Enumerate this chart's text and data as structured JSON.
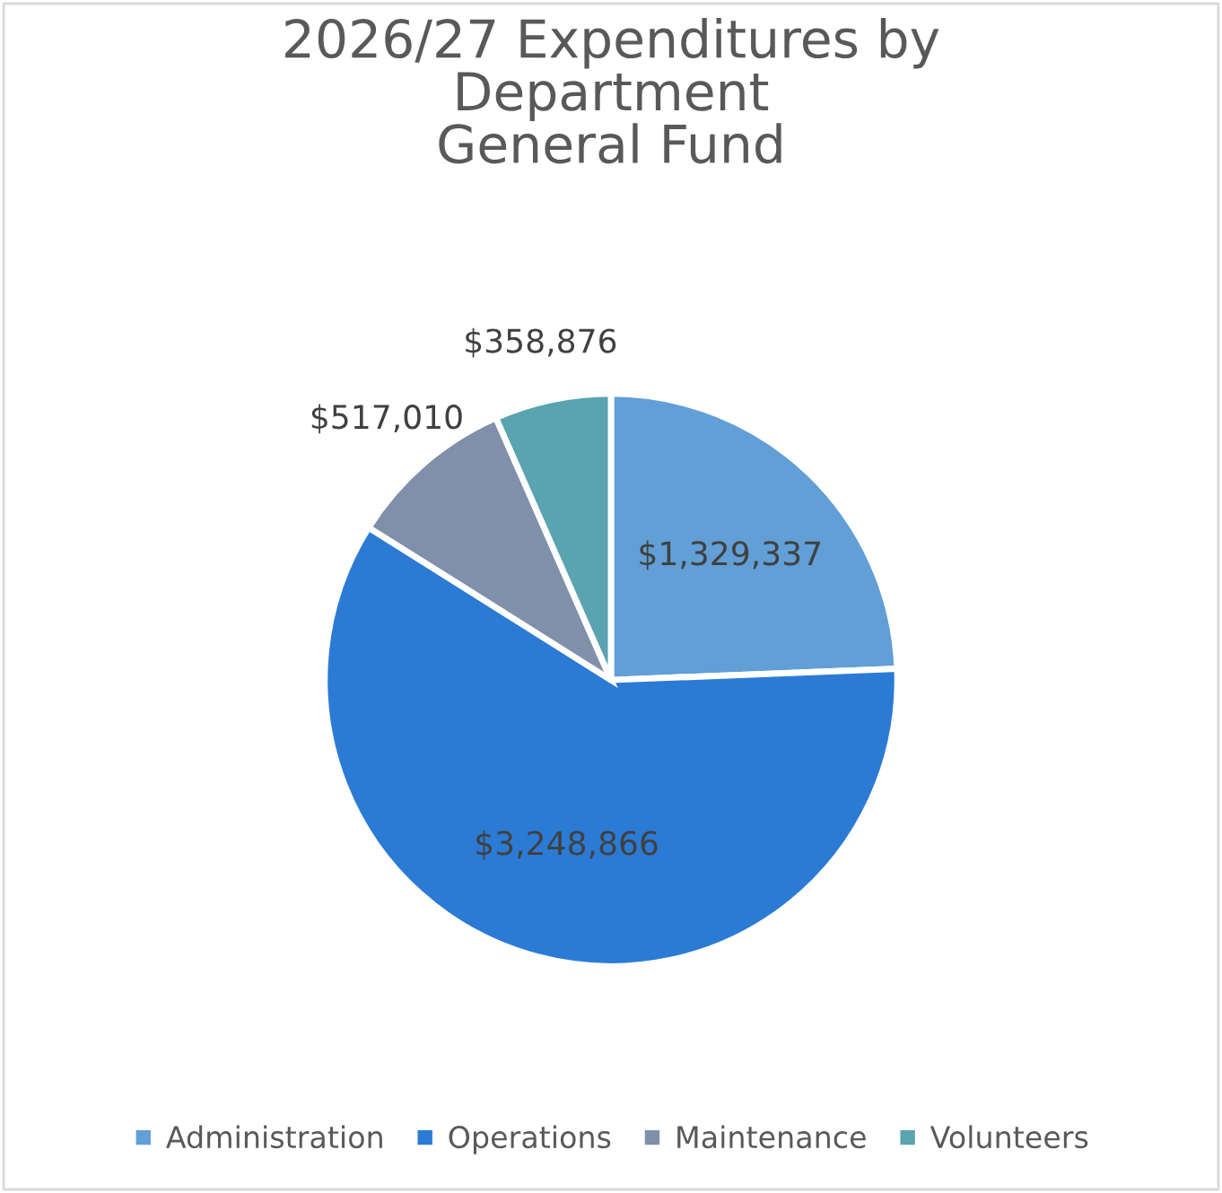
{
  "chart_data": {
    "type": "pie",
    "title": "2026/27 Expenditures by\nDepartment\nGeneral Fund",
    "categories": [
      "Administration",
      "Operations",
      "Maintenance",
      "Volunteers"
    ],
    "values": [
      1329337,
      3248866,
      517010,
      358876
    ],
    "colors": [
      "#619fd6",
      "#2b7bd5",
      "#8090aa",
      "#5aa3b0"
    ],
    "value_labels": [
      "$1,329,337",
      "$3,248,866",
      "$517,010",
      "$358,876"
    ],
    "legend": "bottom"
  }
}
